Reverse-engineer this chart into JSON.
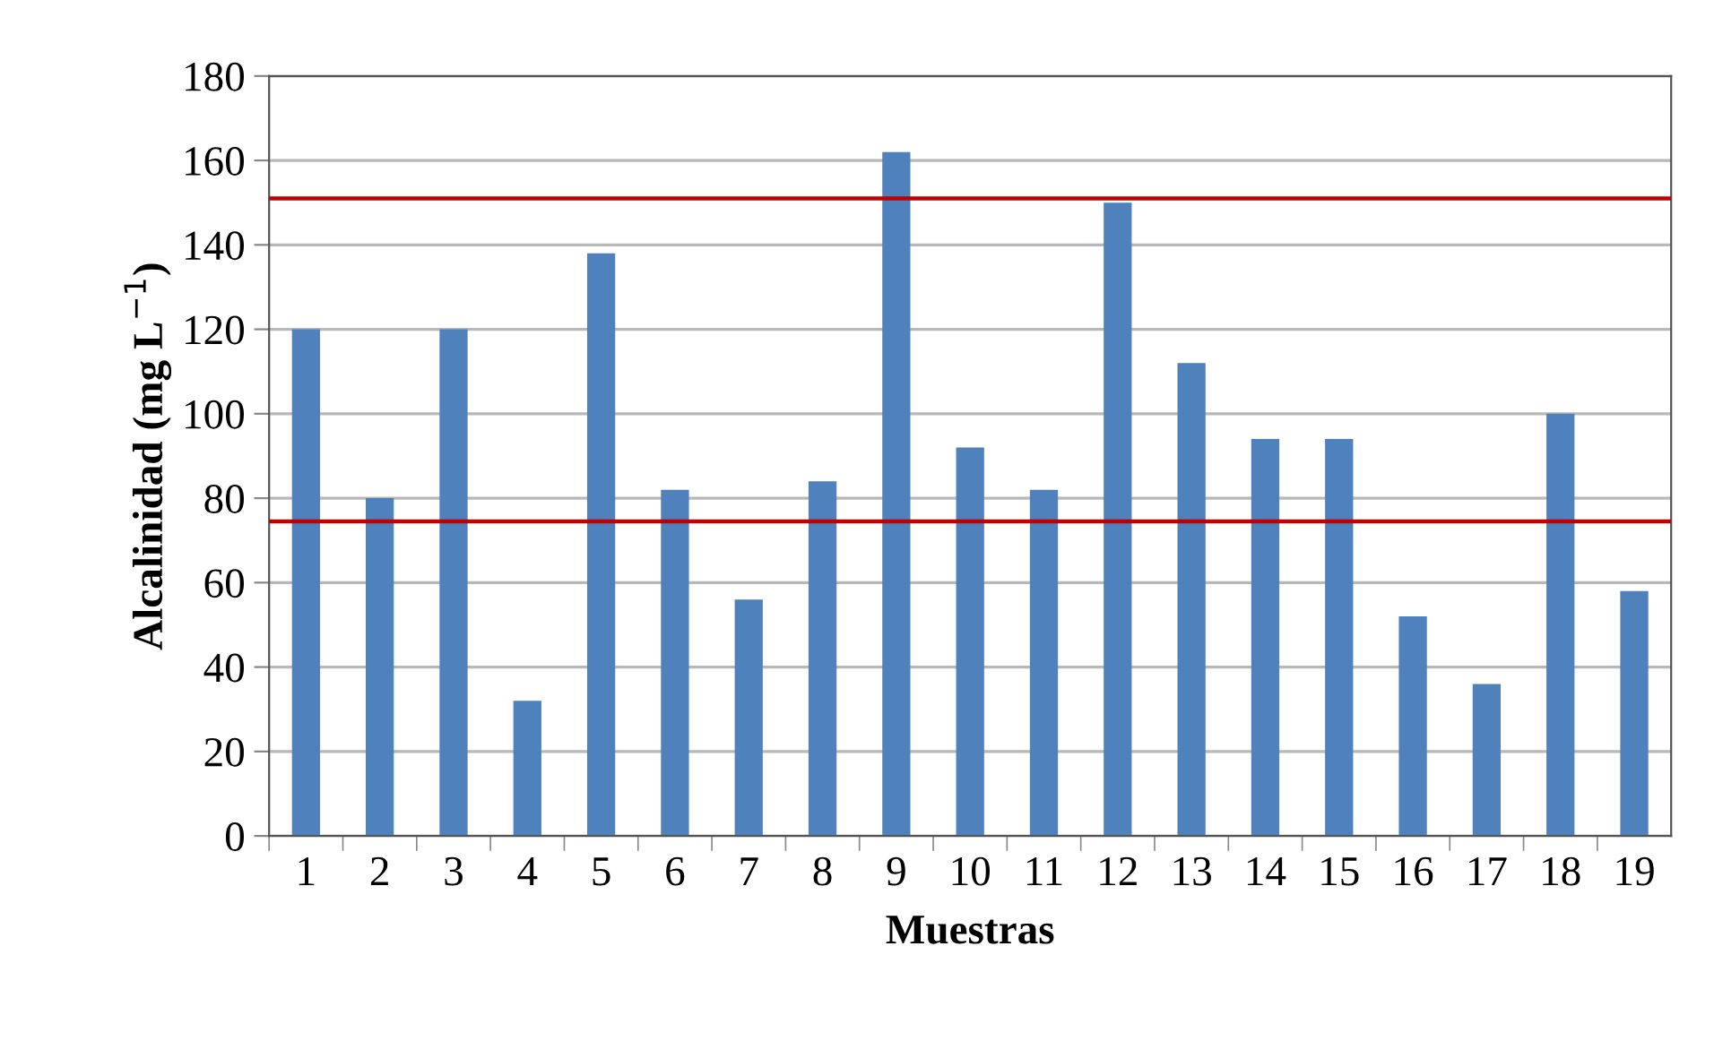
{
  "chart_data": {
    "type": "bar",
    "xlabel": "Muestras",
    "ylabel": "Alcalinidad (mg L$^{−1}$)",
    "categories": [
      "1",
      "2",
      "3",
      "4",
      "5",
      "6",
      "7",
      "8",
      "9",
      "10",
      "11",
      "12",
      "13",
      "14",
      "15",
      "16",
      "17",
      "18",
      "19"
    ],
    "values": [
      120,
      80,
      120,
      32,
      138,
      82,
      56,
      84,
      162,
      92,
      82,
      150,
      112,
      94,
      94,
      52,
      36,
      100,
      58
    ],
    "color": "#4f81bd",
    "ylim": [
      0,
      180
    ],
    "yticks": [
      0,
      20,
      40,
      60,
      80,
      100,
      120,
      140,
      160,
      180
    ],
    "grid": "y",
    "legend": false,
    "ref_lines": [
      {
        "axis": "y",
        "value": 151,
        "label": null,
        "color": "#c00000",
        "line_style": "solid"
      },
      {
        "axis": "y",
        "value": 74.5,
        "label": null,
        "color": "#c00000",
        "line_style": "solid"
      }
    ]
  }
}
